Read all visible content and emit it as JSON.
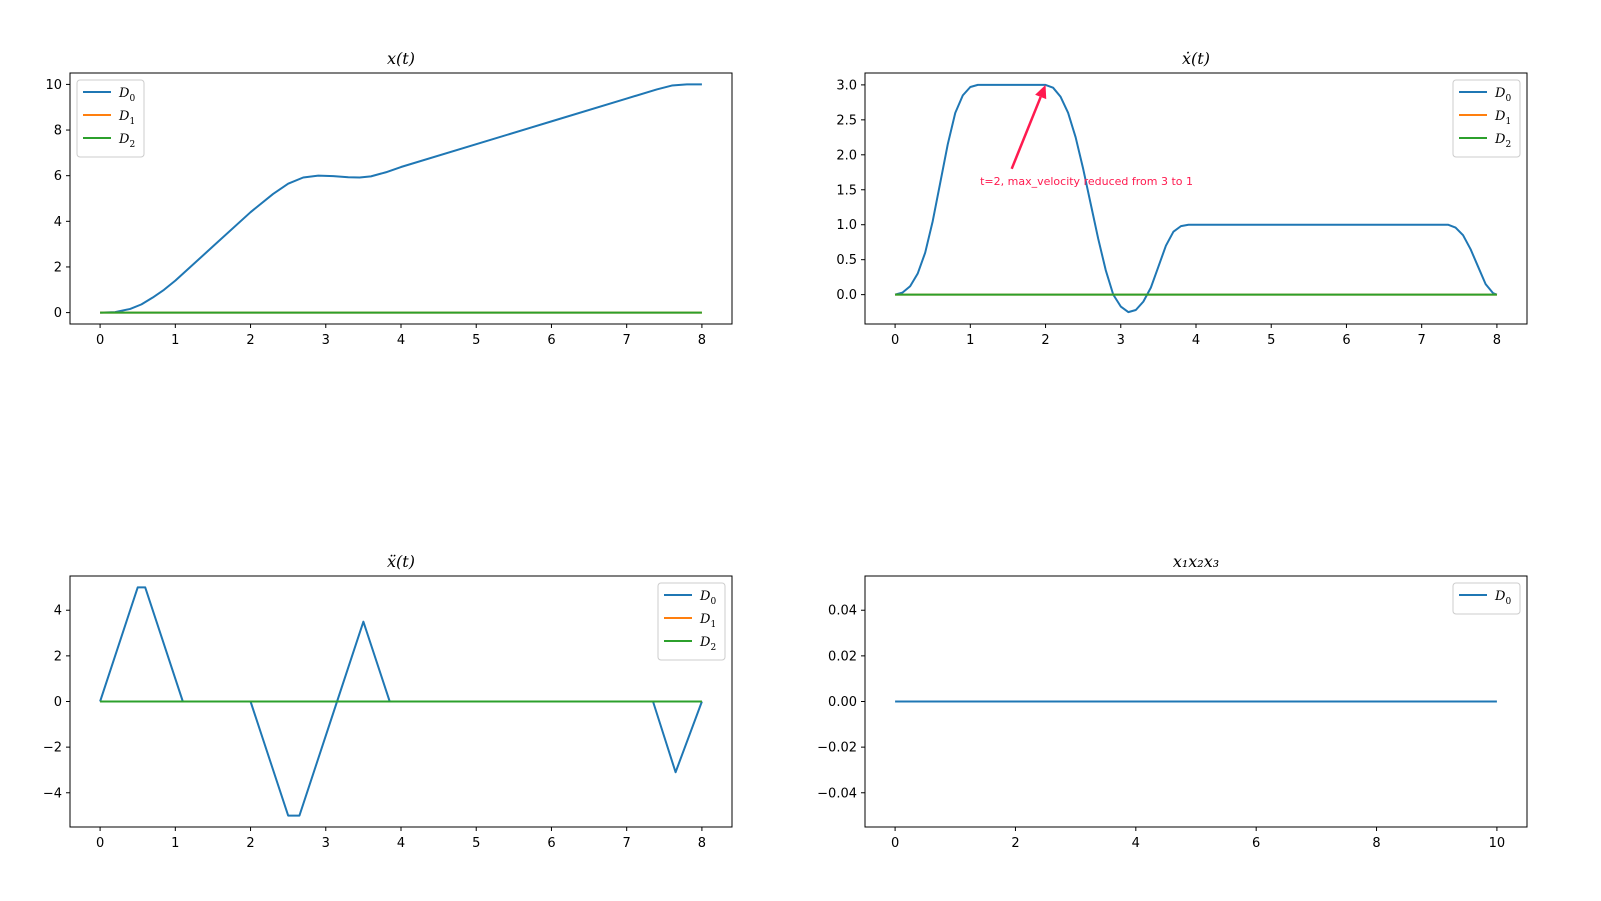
{
  "colors": {
    "D0": "#1f77b4",
    "D1": "#ff7f0e",
    "D2": "#2ca02c",
    "annotation": "#ff1a4f"
  },
  "chart_data": [
    {
      "type": "line",
      "title": "x(t)",
      "xlim": [
        -0.4,
        8.4
      ],
      "ylim": [
        -0.5,
        10.5
      ],
      "xticks": [
        0,
        1,
        2,
        3,
        4,
        5,
        6,
        7,
        8
      ],
      "xticklabels": [
        "0",
        "1",
        "2",
        "3",
        "4",
        "5",
        "6",
        "7",
        "8"
      ],
      "yticks": [
        0,
        2,
        4,
        6,
        8,
        10
      ],
      "yticklabels": [
        "0",
        "2",
        "4",
        "6",
        "8",
        "10"
      ],
      "legend": "top-left",
      "grid": false,
      "series": [
        {
          "name": "D0",
          "sub": "0",
          "color": "#1f77b4",
          "x": [
            0,
            0.2,
            0.4,
            0.55,
            0.7,
            0.85,
            1.0,
            1.5,
            2.0,
            2.3,
            2.5,
            2.7,
            2.9,
            3.1,
            3.3,
            3.45,
            3.6,
            3.8,
            4.0,
            5.0,
            6.0,
            7.0,
            7.4,
            7.6,
            7.8,
            8.0
          ],
          "y": [
            0,
            0.02,
            0.16,
            0.36,
            0.66,
            1.0,
            1.4,
            2.9,
            4.4,
            5.2,
            5.65,
            5.92,
            6.0,
            5.98,
            5.93,
            5.92,
            5.97,
            6.15,
            6.38,
            7.38,
            8.38,
            9.38,
            9.78,
            9.95,
            10.0,
            10.0
          ]
        },
        {
          "name": "D1",
          "sub": "1",
          "color": "#ff7f0e",
          "x": [
            0,
            8
          ],
          "y": [
            0,
            0
          ]
        },
        {
          "name": "D2",
          "sub": "2",
          "color": "#2ca02c",
          "x": [
            0,
            8
          ],
          "y": [
            0,
            0
          ]
        }
      ]
    },
    {
      "type": "line",
      "title": "ẋ(t)",
      "xlim": [
        -0.4,
        8.4
      ],
      "ylim": [
        -0.42,
        3.17
      ],
      "xticks": [
        0,
        1,
        2,
        3,
        4,
        5,
        6,
        7,
        8
      ],
      "xticklabels": [
        "0",
        "1",
        "2",
        "3",
        "4",
        "5",
        "6",
        "7",
        "8"
      ],
      "yticks": [
        0,
        0.5,
        1.0,
        1.5,
        2.0,
        2.5,
        3.0
      ],
      "yticklabels": [
        "0.0",
        "0.5",
        "1.0",
        "1.5",
        "2.0",
        "2.5",
        "3.0"
      ],
      "legend": "top-right",
      "grid": false,
      "annotation": {
        "text": "t=2, max_velocity reduced from 3 to 1",
        "xy": [
          2.0,
          3.0
        ],
        "xytext": [
          1.55,
          1.8
        ],
        "textpos": [
          1.13,
          1.57
        ]
      },
      "series": [
        {
          "name": "D0",
          "sub": "0",
          "color": "#1f77b4",
          "x": [
            0,
            0.1,
            0.2,
            0.3,
            0.4,
            0.5,
            0.6,
            0.7,
            0.8,
            0.9,
            1.0,
            1.1,
            2.0,
            2.1,
            2.2,
            2.3,
            2.4,
            2.5,
            2.6,
            2.7,
            2.8,
            2.9,
            3.0,
            3.1,
            3.2,
            3.3,
            3.4,
            3.5,
            3.6,
            3.7,
            3.8,
            3.9,
            4.0,
            7.35,
            7.45,
            7.55,
            7.65,
            7.75,
            7.85,
            7.95,
            8.0
          ],
          "y": [
            0,
            0.03,
            0.12,
            0.3,
            0.6,
            1.05,
            1.6,
            2.15,
            2.6,
            2.85,
            2.97,
            3.0,
            3.0,
            2.96,
            2.83,
            2.6,
            2.25,
            1.8,
            1.3,
            0.8,
            0.35,
            0.0,
            -0.17,
            -0.25,
            -0.22,
            -0.1,
            0.1,
            0.4,
            0.7,
            0.9,
            0.98,
            1.0,
            1.0,
            1.0,
            0.96,
            0.85,
            0.65,
            0.4,
            0.15,
            0.02,
            0
          ]
        },
        {
          "name": "D1",
          "sub": "1",
          "color": "#ff7f0e",
          "x": [
            0,
            8
          ],
          "y": [
            0,
            0
          ]
        },
        {
          "name": "D2",
          "sub": "2",
          "color": "#2ca02c",
          "x": [
            0,
            8
          ],
          "y": [
            0,
            0
          ]
        }
      ]
    },
    {
      "type": "line",
      "title": "ẍ(t)",
      "xlim": [
        -0.4,
        8.4
      ],
      "ylim": [
        -5.5,
        5.5
      ],
      "xticks": [
        0,
        1,
        2,
        3,
        4,
        5,
        6,
        7,
        8
      ],
      "xticklabels": [
        "0",
        "1",
        "2",
        "3",
        "4",
        "5",
        "6",
        "7",
        "8"
      ],
      "yticks": [
        -4,
        -2,
        0,
        2,
        4
      ],
      "yticklabels": [
        "−4",
        "−2",
        "0",
        "2",
        "4"
      ],
      "legend": "top-right",
      "grid": false,
      "series": [
        {
          "name": "D0",
          "sub": "0",
          "color": "#1f77b4",
          "x": [
            0,
            0.5,
            0.6,
            1.1,
            2.0,
            2.5,
            2.65,
            3.15,
            3.5,
            3.85,
            7.35,
            7.65,
            8.0
          ],
          "y": [
            0,
            5,
            5,
            0,
            0,
            -5,
            -5,
            0,
            3.5,
            0,
            0,
            -3.1,
            0
          ]
        },
        {
          "name": "D1",
          "sub": "1",
          "color": "#ff7f0e",
          "x": [
            0,
            8
          ],
          "y": [
            0,
            0
          ]
        },
        {
          "name": "D2",
          "sub": "2",
          "color": "#2ca02c",
          "x": [
            0,
            8
          ],
          "y": [
            0,
            0
          ]
        }
      ]
    },
    {
      "type": "line",
      "title": "x₁x₂x₃",
      "xlim": [
        -0.5,
        10.5
      ],
      "ylim": [
        -0.055,
        0.055
      ],
      "xticks": [
        0,
        2,
        4,
        6,
        8,
        10
      ],
      "xticklabels": [
        "0",
        "2",
        "4",
        "6",
        "8",
        "10"
      ],
      "yticks": [
        -0.04,
        -0.02,
        0,
        0.02,
        0.04
      ],
      "yticklabels": [
        "−0.04",
        "−0.02",
        "0.00",
        "0.02",
        "0.04"
      ],
      "legend": "top-right",
      "grid": false,
      "series": [
        {
          "name": "D0",
          "sub": "0",
          "color": "#1f77b4",
          "x": [
            0,
            10
          ],
          "y": [
            0,
            0
          ]
        }
      ]
    }
  ]
}
